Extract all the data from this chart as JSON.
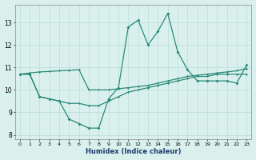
{
  "xlabel": "Humidex (Indice chaleur)",
  "x": [
    0,
    1,
    2,
    3,
    4,
    5,
    6,
    7,
    8,
    9,
    10,
    11,
    12,
    13,
    14,
    15,
    16,
    17,
    18,
    19,
    20,
    21,
    22,
    23
  ],
  "line1": [
    10.7,
    10.7,
    9.7,
    9.6,
    9.5,
    8.7,
    8.5,
    8.3,
    8.3,
    9.6,
    10.1,
    12.8,
    13.1,
    12.0,
    12.6,
    13.4,
    11.7,
    10.9,
    10.4,
    10.4,
    10.4,
    10.4,
    10.3,
    11.1
  ],
  "line2": [
    10.7,
    10.7,
    9.7,
    9.6,
    9.5,
    9.4,
    9.4,
    9.3,
    9.3,
    9.5,
    9.7,
    9.9,
    10.0,
    10.1,
    10.2,
    10.3,
    10.4,
    10.5,
    10.6,
    10.6,
    10.7,
    10.7,
    10.7,
    10.7
  ],
  "line3": [
    10.7,
    10.75,
    10.8,
    10.82,
    10.85,
    10.87,
    10.9,
    10.0,
    10.0,
    10.0,
    10.05,
    10.1,
    10.15,
    10.2,
    10.3,
    10.4,
    10.5,
    10.6,
    10.65,
    10.7,
    10.75,
    10.8,
    10.85,
    10.95
  ],
  "color": "#2a8a78",
  "bg_color": "#daf0ed",
  "grid_color": "#b8ddd8",
  "ylim": [
    7.8,
    13.8
  ],
  "xlim": [
    -0.5,
    23.5
  ],
  "yticks": [
    8,
    9,
    10,
    11,
    12,
    13
  ],
  "xticks": [
    0,
    1,
    2,
    3,
    4,
    5,
    6,
    7,
    8,
    9,
    10,
    11,
    12,
    13,
    14,
    15,
    16,
    17,
    18,
    19,
    20,
    21,
    22,
    23
  ]
}
